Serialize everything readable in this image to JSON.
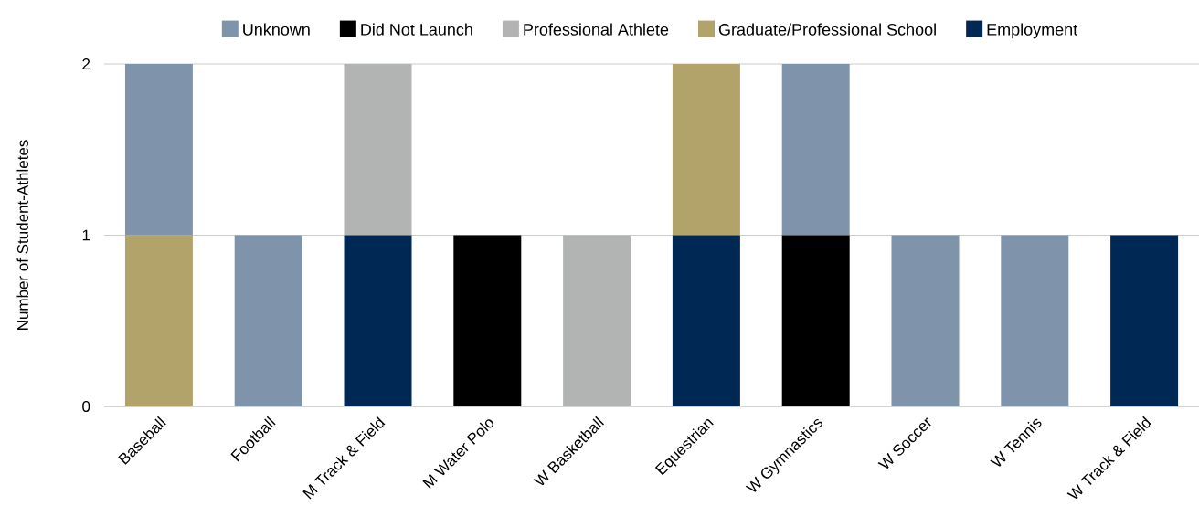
{
  "chart_data": {
    "type": "bar",
    "stacked": true,
    "ylabel": "Number of Student-Athletes",
    "categories": [
      "Baseball",
      "Football",
      "M Track & Field",
      "M Water Polo",
      "W Basketball",
      "Equestrian",
      "W Gymnastics",
      "W Soccer",
      "W Tennis",
      "W Track & Field"
    ],
    "series": [
      {
        "name": "Employment",
        "color": "#002855",
        "values": [
          0,
          0,
          1,
          0,
          0,
          1,
          0,
          0,
          0,
          1
        ]
      },
      {
        "name": "Graduate/Professional School",
        "color": "#b2a36a",
        "values": [
          1,
          0,
          0,
          0,
          0,
          1,
          0,
          0,
          0,
          0
        ]
      },
      {
        "name": "Professional Athlete",
        "color": "#b2b3b3",
        "values": [
          0,
          0,
          1,
          0,
          1,
          0,
          0,
          0,
          0,
          0
        ]
      },
      {
        "name": "Did Not Launch",
        "color": "#000000",
        "values": [
          0,
          0,
          0,
          1,
          0,
          0,
          1,
          0,
          0,
          0
        ]
      },
      {
        "name": "Unknown",
        "color": "#7f93ab",
        "values": [
          1,
          1,
          0,
          0,
          0,
          0,
          1,
          1,
          1,
          0
        ]
      }
    ],
    "ylim": [
      0,
      2
    ],
    "yticks": [
      0,
      1,
      2
    ],
    "grid": "y",
    "legend": "top"
  }
}
